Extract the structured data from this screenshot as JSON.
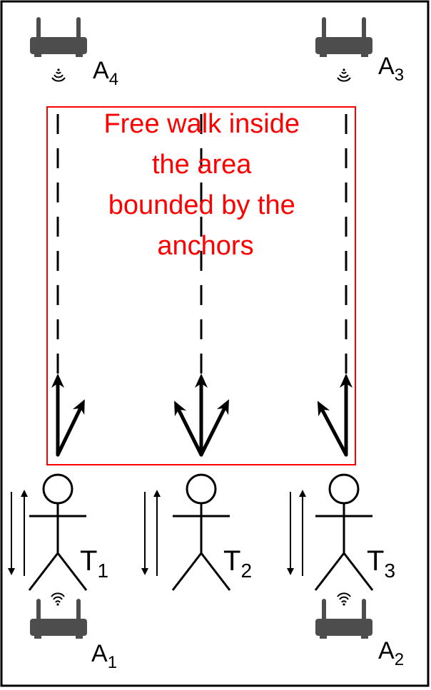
{
  "caption": {
    "lines": [
      "Free walk inside",
      "the area",
      "bounded by the",
      "anchors"
    ],
    "color": "#ff0000"
  },
  "anchors": [
    {
      "id": "A4",
      "base": "A",
      "sub": "4",
      "icon": "wifi-router-icon"
    },
    {
      "id": "A3",
      "base": "A",
      "sub": "3",
      "icon": "wifi-router-icon"
    },
    {
      "id": "A1",
      "base": "A",
      "sub": "1",
      "icon": "wifi-router-icon"
    },
    {
      "id": "A2",
      "base": "A",
      "sub": "2",
      "icon": "wifi-router-icon"
    }
  ],
  "tags": [
    {
      "id": "T1",
      "base": "T",
      "sub": "1",
      "icon": "person-icon"
    },
    {
      "id": "T2",
      "base": "T",
      "sub": "2",
      "icon": "person-icon"
    },
    {
      "id": "T3",
      "base": "T",
      "sub": "3",
      "icon": "person-icon"
    }
  ],
  "colors": {
    "area_border": "#ff0000",
    "ink": "#000000",
    "device": "#4d4d4d"
  }
}
